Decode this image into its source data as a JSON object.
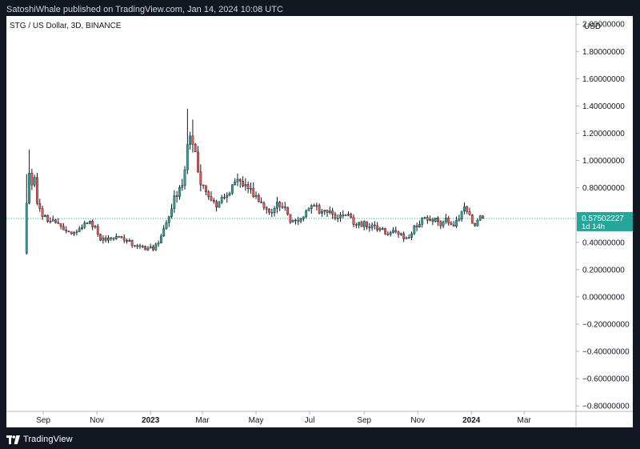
{
  "header": {
    "publish_line": "SatoshiWhale published on TradingView.com, Jan 14, 2024 10:08 UTC"
  },
  "chart_data": {
    "type": "candlestick",
    "symbol_line": "STG / US Dollar, 3D, BINANCE",
    "currency": "USD",
    "y_tick_labels": [
      "2.00000000",
      "1.80000000",
      "1.60000000",
      "1.40000000",
      "1.20000000",
      "1.00000000",
      "0.80000000",
      "0.40000000",
      "0.20000000",
      "0.00000000",
      "−0.20000000",
      "−0.40000000",
      "−0.60000000",
      "−0.80000000"
    ],
    "y_ticks": [
      2.0,
      1.8,
      1.6,
      1.4,
      1.2,
      1.0,
      0.8,
      0.4,
      0.2,
      0.0,
      -0.2,
      -0.4,
      -0.6,
      -0.8
    ],
    "ylim": [
      -0.84,
      2.06
    ],
    "x_tick_labels": [
      "Sep",
      "Nov",
      "2023",
      "Mar",
      "May",
      "Jul",
      "Sep",
      "Nov",
      "2024",
      "Mar"
    ],
    "x_ticks": [
      "2022-09-01",
      "2022-11-01",
      "2023-01-01",
      "2023-03-01",
      "2023-05-01",
      "2023-07-01",
      "2023-09-01",
      "2023-11-01",
      "2024-01-01",
      "2024-03-01"
    ],
    "x_bold_labels": [
      "2023",
      "2024"
    ],
    "xlim": [
      "2022-07-21",
      "2024-04-29"
    ],
    "last_price": 0.57502227,
    "last_price_label": "0.57502227",
    "countdown_label": "1d 14h",
    "colors": {
      "up": "#26a69a",
      "down": "#ef5350",
      "wick": "#131722",
      "price_line": "#26a69a",
      "price_tag": "#26a69a"
    },
    "price_path": [
      [
        "2022-08-13",
        0.68
      ],
      [
        "2022-08-16",
        0.95
      ],
      [
        "2022-08-19",
        0.85
      ],
      [
        "2022-08-22",
        0.9
      ],
      [
        "2022-08-25",
        0.7
      ],
      [
        "2022-08-28",
        0.64
      ],
      [
        "2022-08-31",
        0.6
      ],
      [
        "2022-09-05",
        0.56
      ],
      [
        "2022-09-15",
        0.55
      ],
      [
        "2022-09-25",
        0.5
      ],
      [
        "2022-10-05",
        0.47
      ],
      [
        "2022-10-15",
        0.52
      ],
      [
        "2022-10-25",
        0.56
      ],
      [
        "2022-11-05",
        0.42
      ],
      [
        "2022-11-15",
        0.42
      ],
      [
        "2022-11-25",
        0.44
      ],
      [
        "2022-12-05",
        0.42
      ],
      [
        "2022-12-15",
        0.37
      ],
      [
        "2022-12-25",
        0.36
      ],
      [
        "2023-01-05",
        0.36
      ],
      [
        "2023-01-12",
        0.41
      ],
      [
        "2023-01-20",
        0.58
      ],
      [
        "2023-01-28",
        0.72
      ],
      [
        "2023-02-05",
        0.8
      ],
      [
        "2023-02-10",
        0.96
      ],
      [
        "2023-02-14",
        1.18
      ],
      [
        "2023-02-18",
        1.1
      ],
      [
        "2023-02-22",
        1.02
      ],
      [
        "2023-02-27",
        0.84
      ],
      [
        "2023-03-05",
        0.76
      ],
      [
        "2023-03-12",
        0.72
      ],
      [
        "2023-03-18",
        0.66
      ],
      [
        "2023-03-25",
        0.74
      ],
      [
        "2023-04-02",
        0.8
      ],
      [
        "2023-04-10",
        0.86
      ],
      [
        "2023-04-18",
        0.84
      ],
      [
        "2023-04-26",
        0.78
      ],
      [
        "2023-05-04",
        0.72
      ],
      [
        "2023-05-12",
        0.64
      ],
      [
        "2023-05-20",
        0.6
      ],
      [
        "2023-05-26",
        0.68
      ],
      [
        "2023-06-02",
        0.64
      ],
      [
        "2023-06-10",
        0.56
      ],
      [
        "2023-06-18",
        0.57
      ],
      [
        "2023-06-26",
        0.6
      ],
      [
        "2023-07-04",
        0.66
      ],
      [
        "2023-07-12",
        0.64
      ],
      [
        "2023-07-20",
        0.62
      ],
      [
        "2023-07-28",
        0.6
      ],
      [
        "2023-08-05",
        0.6
      ],
      [
        "2023-08-12",
        0.62
      ],
      [
        "2023-08-18",
        0.56
      ],
      [
        "2023-08-26",
        0.54
      ],
      [
        "2023-09-03",
        0.53
      ],
      [
        "2023-09-10",
        0.52
      ],
      [
        "2023-09-18",
        0.49
      ],
      [
        "2023-09-26",
        0.48
      ],
      [
        "2023-10-04",
        0.47
      ],
      [
        "2023-10-12",
        0.47
      ],
      [
        "2023-10-18",
        0.43
      ],
      [
        "2023-10-24",
        0.46
      ],
      [
        "2023-10-30",
        0.52
      ],
      [
        "2023-11-05",
        0.56
      ],
      [
        "2023-11-12",
        0.58
      ],
      [
        "2023-11-20",
        0.56
      ],
      [
        "2023-11-28",
        0.54
      ],
      [
        "2023-12-05",
        0.56
      ],
      [
        "2023-12-12",
        0.54
      ],
      [
        "2023-12-18",
        0.58
      ],
      [
        "2023-12-24",
        0.64
      ],
      [
        "2023-12-30",
        0.58
      ],
      [
        "2024-01-04",
        0.53
      ],
      [
        "2024-01-09",
        0.57
      ],
      [
        "2024-01-14",
        0.57502227
      ]
    ]
  },
  "footer": {
    "brand": "TradingView"
  }
}
